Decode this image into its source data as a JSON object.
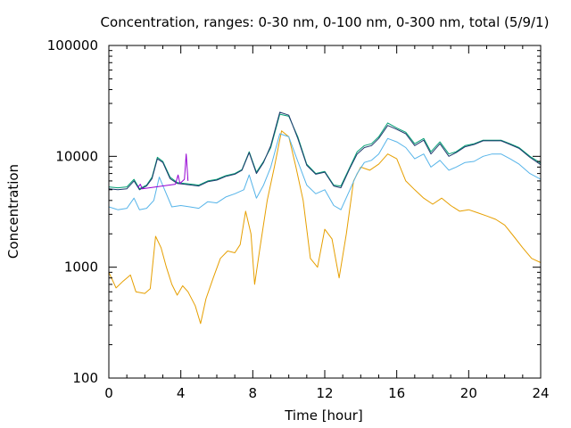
{
  "chart_data": {
    "type": "line",
    "title": "Concentration, ranges: 0-30 nm, 0-100 nm, 0-300 nm, total (5/9/1)",
    "xlabel": "Time [hour]",
    "ylabel": "Concentration",
    "xlim": [
      0,
      24
    ],
    "ylim": [
      100,
      100000
    ],
    "yscale": "log",
    "x_ticks": [
      0,
      4,
      8,
      12,
      16,
      20,
      24
    ],
    "x_tick_labels": [
      "0",
      "4",
      "8",
      "12",
      "16",
      "20",
      "24"
    ],
    "y_ticks": [
      100,
      1000,
      10000,
      100000
    ],
    "y_tick_labels": [
      "100",
      "1000",
      "10000",
      "100000"
    ],
    "grid": false,
    "legend": "none",
    "series": [
      {
        "color": "#e69f00",
        "points": [
          [
            0,
            900
          ],
          [
            0.4,
            650
          ],
          [
            0.8,
            750
          ],
          [
            1.2,
            850
          ],
          [
            1.5,
            600
          ],
          [
            2.0,
            580
          ],
          [
            2.3,
            640
          ],
          [
            2.6,
            1900
          ],
          [
            2.9,
            1500
          ],
          [
            3.2,
            1000
          ],
          [
            3.5,
            700
          ],
          [
            3.8,
            560
          ],
          [
            4.1,
            680
          ],
          [
            4.4,
            600
          ],
          [
            4.8,
            450
          ],
          [
            5.1,
            310
          ],
          [
            5.4,
            520
          ],
          [
            5.8,
            800
          ],
          [
            6.2,
            1200
          ],
          [
            6.6,
            1400
          ],
          [
            7.0,
            1350
          ],
          [
            7.3,
            1600
          ],
          [
            7.6,
            3200
          ],
          [
            7.9,
            2000
          ],
          [
            8.1,
            700
          ],
          [
            8.4,
            1500
          ],
          [
            8.8,
            4000
          ],
          [
            9.2,
            8000
          ],
          [
            9.6,
            17000
          ],
          [
            10.0,
            15000
          ],
          [
            10.4,
            8000
          ],
          [
            10.8,
            4000
          ],
          [
            11.2,
            1200
          ],
          [
            11.6,
            1000
          ],
          [
            12.0,
            2200
          ],
          [
            12.4,
            1800
          ],
          [
            12.8,
            800
          ],
          [
            13.2,
            2000
          ],
          [
            13.6,
            6000
          ],
          [
            14.0,
            8000
          ],
          [
            14.5,
            7500
          ],
          [
            15.0,
            8500
          ],
          [
            15.5,
            10500
          ],
          [
            16.0,
            9500
          ],
          [
            16.5,
            6000
          ],
          [
            17.0,
            5000
          ],
          [
            17.5,
            4200
          ],
          [
            18.0,
            3700
          ],
          [
            18.5,
            4200
          ],
          [
            19.0,
            3600
          ],
          [
            19.5,
            3200
          ],
          [
            20.0,
            3300
          ],
          [
            20.5,
            3100
          ],
          [
            21.0,
            2900
          ],
          [
            21.5,
            2700
          ],
          [
            22.0,
            2400
          ],
          [
            22.5,
            1900
          ],
          [
            23.0,
            1500
          ],
          [
            23.5,
            1200
          ],
          [
            24.0,
            1100
          ]
        ]
      },
      {
        "color": "#56b4e9",
        "points": [
          [
            0,
            3500
          ],
          [
            0.5,
            3300
          ],
          [
            1.0,
            3400
          ],
          [
            1.4,
            4200
          ],
          [
            1.7,
            3300
          ],
          [
            2.1,
            3400
          ],
          [
            2.5,
            4000
          ],
          [
            2.8,
            6500
          ],
          [
            3.1,
            5000
          ],
          [
            3.5,
            3500
          ],
          [
            4.0,
            3600
          ],
          [
            4.5,
            3500
          ],
          [
            5.0,
            3400
          ],
          [
            5.5,
            3900
          ],
          [
            6.0,
            3800
          ],
          [
            6.5,
            4300
          ],
          [
            7.0,
            4600
          ],
          [
            7.5,
            5000
          ],
          [
            7.8,
            6800
          ],
          [
            8.2,
            4200
          ],
          [
            8.6,
            5500
          ],
          [
            9.0,
            8000
          ],
          [
            9.5,
            16000
          ],
          [
            10.0,
            15000
          ],
          [
            10.5,
            9000
          ],
          [
            11.0,
            5500
          ],
          [
            11.5,
            4600
          ],
          [
            12.0,
            5000
          ],
          [
            12.5,
            3600
          ],
          [
            12.9,
            3300
          ],
          [
            13.4,
            5000
          ],
          [
            13.8,
            7000
          ],
          [
            14.2,
            8800
          ],
          [
            14.6,
            9200
          ],
          [
            15.0,
            10500
          ],
          [
            15.5,
            14500
          ],
          [
            16.0,
            13500
          ],
          [
            16.5,
            12000
          ],
          [
            17.0,
            9500
          ],
          [
            17.5,
            10500
          ],
          [
            17.9,
            8000
          ],
          [
            18.4,
            9200
          ],
          [
            18.9,
            7500
          ],
          [
            19.3,
            8000
          ],
          [
            19.8,
            8800
          ],
          [
            20.3,
            9000
          ],
          [
            20.8,
            10000
          ],
          [
            21.3,
            10500
          ],
          [
            21.8,
            10500
          ],
          [
            22.3,
            9500
          ],
          [
            22.8,
            8500
          ],
          [
            23.4,
            7000
          ],
          [
            24.0,
            6200
          ]
        ]
      },
      {
        "color": "#009e73",
        "points": [
          [
            0,
            5300
          ],
          [
            0.5,
            5200
          ],
          [
            1.0,
            5300
          ],
          [
            1.4,
            6200
          ],
          [
            1.7,
            5100
          ],
          [
            2.1,
            5500
          ],
          [
            2.4,
            6500
          ],
          [
            2.7,
            9800
          ],
          [
            3.0,
            9000
          ],
          [
            3.4,
            6500
          ],
          [
            3.8,
            5800
          ],
          [
            4.2,
            5700
          ],
          [
            4.6,
            5600
          ],
          [
            5.0,
            5500
          ],
          [
            5.5,
            6000
          ],
          [
            6.0,
            6200
          ],
          [
            6.5,
            6700
          ],
          [
            7.0,
            7000
          ],
          [
            7.4,
            7600
          ],
          [
            7.8,
            11000
          ],
          [
            8.2,
            7200
          ],
          [
            8.6,
            9000
          ],
          [
            9.0,
            12000
          ],
          [
            9.5,
            24000
          ],
          [
            10.0,
            23000
          ],
          [
            10.5,
            15000
          ],
          [
            11.0,
            8500
          ],
          [
            11.5,
            7000
          ],
          [
            12.0,
            7300
          ],
          [
            12.5,
            5500
          ],
          [
            12.9,
            5400
          ],
          [
            13.4,
            8000
          ],
          [
            13.8,
            11000
          ],
          [
            14.2,
            12500
          ],
          [
            14.6,
            13000
          ],
          [
            15.0,
            15000
          ],
          [
            15.5,
            20000
          ],
          [
            16.0,
            18000
          ],
          [
            16.5,
            16500
          ],
          [
            17.0,
            13000
          ],
          [
            17.5,
            14500
          ],
          [
            17.9,
            11000
          ],
          [
            18.4,
            13500
          ],
          [
            18.9,
            10500
          ],
          [
            19.3,
            11000
          ],
          [
            19.8,
            12500
          ],
          [
            20.3,
            13000
          ],
          [
            20.8,
            14000
          ],
          [
            21.3,
            14000
          ],
          [
            21.8,
            14000
          ],
          [
            22.3,
            13000
          ],
          [
            22.8,
            12000
          ],
          [
            23.4,
            10000
          ],
          [
            24.0,
            8700
          ]
        ]
      },
      {
        "color": "#1f3a6e",
        "points": [
          [
            0,
            5100
          ],
          [
            0.5,
            5000
          ],
          [
            1.0,
            5100
          ],
          [
            1.4,
            6000
          ],
          [
            1.7,
            5000
          ],
          [
            2.1,
            5400
          ],
          [
            2.4,
            6300
          ],
          [
            2.7,
            9500
          ],
          [
            3.0,
            8800
          ],
          [
            3.4,
            6300
          ],
          [
            3.8,
            5700
          ],
          [
            4.2,
            5600
          ],
          [
            4.6,
            5500
          ],
          [
            5.0,
            5400
          ],
          [
            5.5,
            5900
          ],
          [
            6.0,
            6100
          ],
          [
            6.5,
            6600
          ],
          [
            7.0,
            6900
          ],
          [
            7.4,
            7500
          ],
          [
            7.8,
            10800
          ],
          [
            8.2,
            7000
          ],
          [
            8.6,
            8800
          ],
          [
            9.0,
            12500
          ],
          [
            9.5,
            25000
          ],
          [
            10.0,
            23500
          ],
          [
            10.5,
            14500
          ],
          [
            11.0,
            8300
          ],
          [
            11.5,
            6900
          ],
          [
            12.0,
            7200
          ],
          [
            12.5,
            5400
          ],
          [
            12.9,
            5200
          ],
          [
            13.4,
            7800
          ],
          [
            13.8,
            10500
          ],
          [
            14.2,
            12000
          ],
          [
            14.6,
            12500
          ],
          [
            15.0,
            14500
          ],
          [
            15.5,
            19000
          ],
          [
            16.0,
            17500
          ],
          [
            16.5,
            16000
          ],
          [
            17.0,
            12500
          ],
          [
            17.5,
            14000
          ],
          [
            17.9,
            10500
          ],
          [
            18.4,
            13000
          ],
          [
            18.9,
            10000
          ],
          [
            19.3,
            10800
          ],
          [
            19.8,
            12200
          ],
          [
            20.3,
            12800
          ],
          [
            20.8,
            13800
          ],
          [
            21.3,
            13800
          ],
          [
            21.8,
            13800
          ],
          [
            22.3,
            12800
          ],
          [
            22.8,
            11800
          ],
          [
            23.4,
            9800
          ],
          [
            24.0,
            8400
          ]
        ]
      },
      {
        "color": "#9400d3",
        "points": [
          [
            1.6,
            5200
          ],
          [
            1.75,
            5600
          ],
          [
            1.85,
            5100
          ],
          [
            3.7,
            5600
          ],
          [
            3.85,
            6800
          ],
          [
            3.95,
            5700
          ],
          [
            4.2,
            6200
          ],
          [
            4.3,
            10500
          ],
          [
            4.4,
            6000
          ]
        ]
      }
    ]
  }
}
